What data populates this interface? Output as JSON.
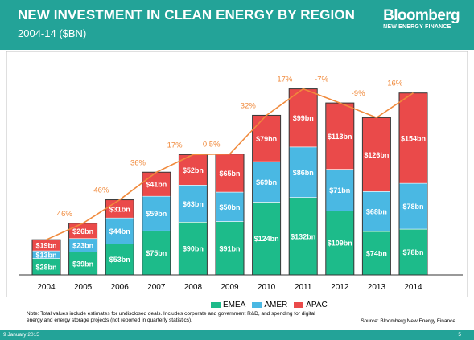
{
  "header": {
    "title": "NEW INVESTMENT IN CLEAN ENERGY BY REGION",
    "subtitle": "2004-14 ($BN)",
    "brand_name": "Bloomberg",
    "brand_sub": "NEW ENERGY FINANCE"
  },
  "colors": {
    "header_bg": "#23a398",
    "emea": "#1dbb8a",
    "amer": "#4ab8e3",
    "apac": "#ea4a4a",
    "growth_line": "#f08a3c"
  },
  "chart_data": {
    "type": "bar",
    "stacked": true,
    "categories": [
      "2004",
      "2005",
      "2006",
      "2007",
      "2008",
      "2009",
      "2010",
      "2011",
      "2012",
      "2013",
      "2014"
    ],
    "series": [
      {
        "name": "EMEA",
        "values": [
          28,
          39,
          53,
          75,
          90,
          91,
          124,
          132,
          109,
          74,
          78
        ],
        "labels": [
          "$28bn",
          "$39bn",
          "$53bn",
          "$75bn",
          "$90bn",
          "$91bn",
          "$124bn",
          "$132bn",
          "$109bn",
          "$74bn",
          "$78bn"
        ]
      },
      {
        "name": "AMER",
        "values": [
          13,
          23,
          44,
          59,
          63,
          50,
          69,
          86,
          71,
          68,
          78
        ],
        "labels": [
          "$13bn",
          "$23bn",
          "$44bn",
          "$59bn",
          "$63bn",
          "$50bn",
          "$69bn",
          "$86bn",
          "$71bn",
          "$68bn",
          "$78bn"
        ]
      },
      {
        "name": "APAC",
        "values": [
          19,
          26,
          31,
          41,
          52,
          65,
          79,
          99,
          113,
          126,
          154
        ],
        "labels": [
          "$19bn",
          "$26bn",
          "$31bn",
          "$41bn",
          "$52bn",
          "$65bn",
          "$79bn",
          "$99bn",
          "$113bn",
          "$126bn",
          "$154bn"
        ]
      }
    ],
    "growth_labels": [
      "46%",
      "46%",
      "36%",
      "17%",
      "0.5%",
      "32%",
      "17%",
      "-7%",
      "-9%",
      "16%"
    ],
    "ylim": [
      0,
      325
    ],
    "grid": false,
    "legend": "bottom"
  },
  "notes": {
    "note": "Note: Total values include estimates for undisclosed deals. Includes corporate and government R&D, and spending for digital energy and energy storage projects (not reported in quarterly statistics).",
    "source": "Source: Bloomberg New Energy Finance"
  },
  "footer": {
    "date": "9 January 2015",
    "page": "5"
  }
}
